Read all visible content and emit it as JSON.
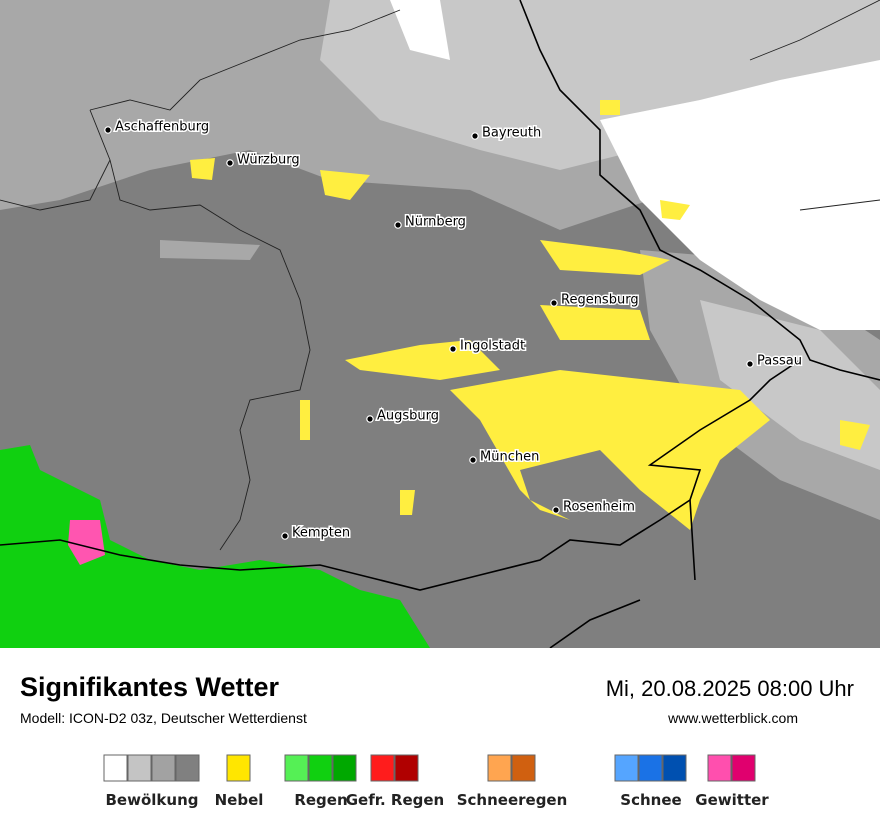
{
  "header": {
    "title": "Signifikantes Wetter",
    "subtitle": "Modell: ICON-D2 03z, Deutscher Wetterdienst",
    "datetime": "Mi, 20.08.2025 08:00 Uhr",
    "website": "www.wetterblick.com"
  },
  "map": {
    "cities": [
      {
        "name": "Aschaffenburg"
      },
      {
        "name": "Würzburg"
      },
      {
        "name": "Bayreuth"
      },
      {
        "name": "Nürnberg"
      },
      {
        "name": "Regensburg"
      },
      {
        "name": "Ingolstadt"
      },
      {
        "name": "Passau"
      },
      {
        "name": "Augsburg"
      },
      {
        "name": "München"
      },
      {
        "name": "Rosenheim"
      },
      {
        "name": "Kempten"
      }
    ]
  },
  "legend": [
    {
      "label": "Bewölkung",
      "colors": [
        "#ffffff",
        "#c4c4c4",
        "#a2a2a2",
        "#808080"
      ]
    },
    {
      "label": "Nebel",
      "colors": [
        "#ffe600"
      ]
    },
    {
      "label": "Regen",
      "colors": [
        "#55f055",
        "#10d010",
        "#00a800"
      ]
    },
    {
      "label": "Gefr. Regen",
      "colors": [
        "#ff1c1c",
        "#b00000"
      ]
    },
    {
      "label": "Schneeregen",
      "colors": [
        "#ffa550",
        "#d06010"
      ]
    },
    {
      "label": "Schnee",
      "colors": [
        "#55a5ff",
        "#1a72e6",
        "#0050b0"
      ]
    },
    {
      "label": "Gewitter",
      "colors": [
        "#ff4fae",
        "#e0006e"
      ]
    }
  ]
}
